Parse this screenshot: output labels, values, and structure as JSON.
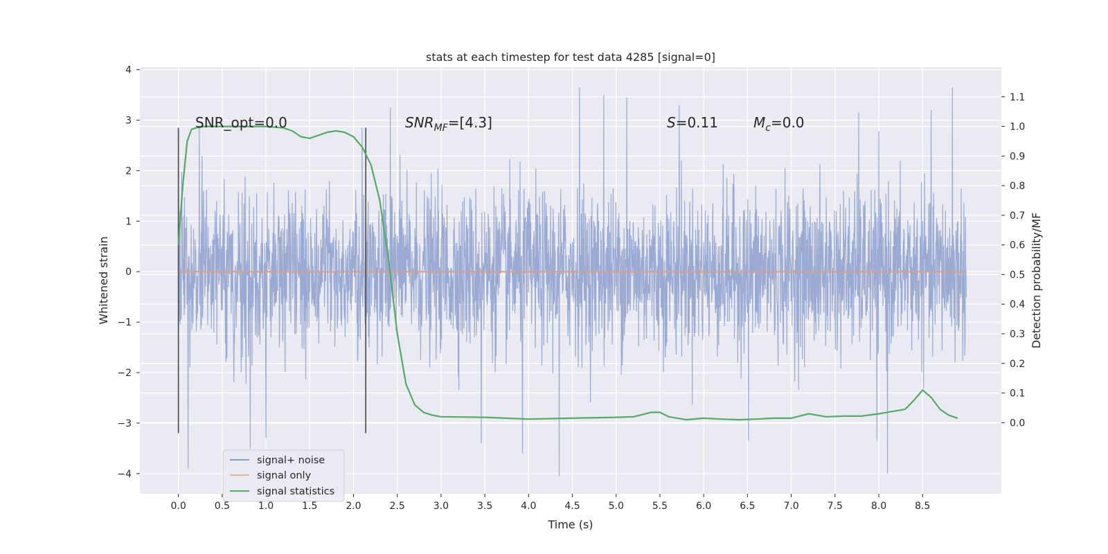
{
  "chart_data": {
    "type": "line",
    "title": "stats at each timestep for test data 4285 [signal=0]",
    "xlabel": "Time (s)",
    "ylabel": "Whitened strain",
    "y2label": "Detection probability/MF",
    "xlim": [
      -0.44,
      9.4
    ],
    "ylim": [
      -4.4,
      4.05
    ],
    "y2lim": [
      -0.24,
      1.2
    ],
    "xticks": [
      0.0,
      0.5,
      1.0,
      1.5,
      2.0,
      2.5,
      3.0,
      3.5,
      4.0,
      4.5,
      5.0,
      5.5,
      6.0,
      6.5,
      7.0,
      7.5,
      8.0,
      8.5
    ],
    "xtick_labels": [
      "0.0",
      "0.5",
      "1.0",
      "1.5",
      "2.0",
      "2.5",
      "3.0",
      "3.5",
      "4.0",
      "4.5",
      "5.0",
      "5.5",
      "6.0",
      "6.5",
      "7.0",
      "7.5",
      "8.0",
      "8.5"
    ],
    "yticks": [
      4,
      3,
      2,
      1,
      0,
      -1,
      -2,
      -3,
      -4
    ],
    "ytick_labels": [
      "4",
      "3",
      "2",
      "1",
      "0",
      "−1",
      "−2",
      "−3",
      "−4"
    ],
    "y2ticks": [
      1.1,
      1.0,
      0.9,
      0.8,
      0.7,
      0.6,
      0.5,
      0.4,
      0.3,
      0.2,
      0.1,
      0.0
    ],
    "y2tick_labels": [
      "1.1",
      "1.0",
      "0.9",
      "0.8",
      "0.7",
      "0.6",
      "0.5",
      "0.4",
      "0.3",
      "0.2",
      "0.1",
      "0.0"
    ],
    "grid": true,
    "legend_position": "lower-left",
    "series": [
      {
        "name": "signal+ noise",
        "color": "#8c9fcc",
        "kind": "noise",
        "x_range": [
          0.0,
          9.0
        ],
        "rms": 0.78,
        "peaks": [
          {
            "x": 0.0,
            "y": -3.2
          },
          {
            "x": 0.0,
            "y": 2.85
          },
          {
            "x": 0.11,
            "y": -3.9
          },
          {
            "x": 0.24,
            "y": 2.9
          },
          {
            "x": 0.82,
            "y": -3.5
          },
          {
            "x": 1.0,
            "y": -3.3
          },
          {
            "x": 2.1,
            "y": 2.85
          },
          {
            "x": 2.42,
            "y": 3.25
          },
          {
            "x": 3.46,
            "y": -3.4
          },
          {
            "x": 3.93,
            "y": -3.6
          },
          {
            "x": 4.35,
            "y": -4.05
          },
          {
            "x": 4.58,
            "y": 3.65
          },
          {
            "x": 4.86,
            "y": 3.5
          },
          {
            "x": 5.12,
            "y": 3.45
          },
          {
            "x": 5.72,
            "y": 3.3
          },
          {
            "x": 6.51,
            "y": -3.35
          },
          {
            "x": 7.77,
            "y": 3.15
          },
          {
            "x": 8.1,
            "y": -4.0
          },
          {
            "x": 8.6,
            "y": 3.2
          },
          {
            "x": 8.84,
            "y": 3.65
          },
          {
            "x": 7.98,
            "y": -3.35
          }
        ]
      },
      {
        "name": "signal only",
        "color": "#dd8452",
        "x": [
          0.0,
          9.0
        ],
        "y": [
          0.0,
          0.0
        ]
      },
      {
        "name": "signal statistics",
        "color": "#55a868",
        "axis": "right",
        "x": [
          0.0,
          0.05,
          0.1,
          0.15,
          0.2,
          0.3,
          0.5,
          0.8,
          1.0,
          1.2,
          1.3,
          1.4,
          1.5,
          1.6,
          1.7,
          1.8,
          1.9,
          2.0,
          2.1,
          2.2,
          2.3,
          2.4,
          2.5,
          2.6,
          2.7,
          2.8,
          2.9,
          3.0,
          3.5,
          4.0,
          4.5,
          5.0,
          5.2,
          5.4,
          5.5,
          5.6,
          5.8,
          6.0,
          6.2,
          6.4,
          6.6,
          6.8,
          7.0,
          7.2,
          7.4,
          7.6,
          7.8,
          8.0,
          8.2,
          8.3,
          8.4,
          8.5,
          8.6,
          8.7,
          8.8,
          8.9
        ],
        "y": [
          0.6,
          0.8,
          0.95,
          0.99,
          0.995,
          1.0,
          1.0,
          1.0,
          1.0,
          0.995,
          0.985,
          0.965,
          0.96,
          0.97,
          0.98,
          0.985,
          0.98,
          0.965,
          0.93,
          0.87,
          0.75,
          0.55,
          0.3,
          0.13,
          0.06,
          0.035,
          0.025,
          0.02,
          0.018,
          0.012,
          0.015,
          0.018,
          0.02,
          0.035,
          0.035,
          0.02,
          0.01,
          0.015,
          0.012,
          0.01,
          0.012,
          0.015,
          0.015,
          0.03,
          0.02,
          0.022,
          0.022,
          0.03,
          0.04,
          0.045,
          0.075,
          0.11,
          0.085,
          0.045,
          0.025,
          0.015
        ]
      }
    ],
    "vlines": [
      {
        "x": 0.0,
        "ymin": -3.2,
        "ymax": 2.85,
        "color": "#555555"
      },
      {
        "x": 2.14,
        "ymin": -3.2,
        "ymax": 2.85,
        "color": "#555555"
      }
    ],
    "annotations": [
      {
        "x": 0.2,
        "y": 2.85,
        "text": "SNR_opt=0.0"
      },
      {
        "x": 2.6,
        "y": 2.85,
        "text": "SNR_MF=[4.3]"
      },
      {
        "x": 5.6,
        "y": 2.85,
        "text": "S=0.11"
      },
      {
        "x": 6.6,
        "y": 2.85,
        "text": "M_c=0.0"
      }
    ]
  },
  "annotation_parts": {
    "snr_opt": "SNR_opt=0.0",
    "snr_mf_main": "SNR",
    "snr_mf_sub": "MF",
    "snr_mf_rest": "=[4.3]",
    "s_main": "S",
    "s_rest": "=0.11",
    "mc_main": "M",
    "mc_sub": "c",
    "mc_rest": "=0.0"
  }
}
